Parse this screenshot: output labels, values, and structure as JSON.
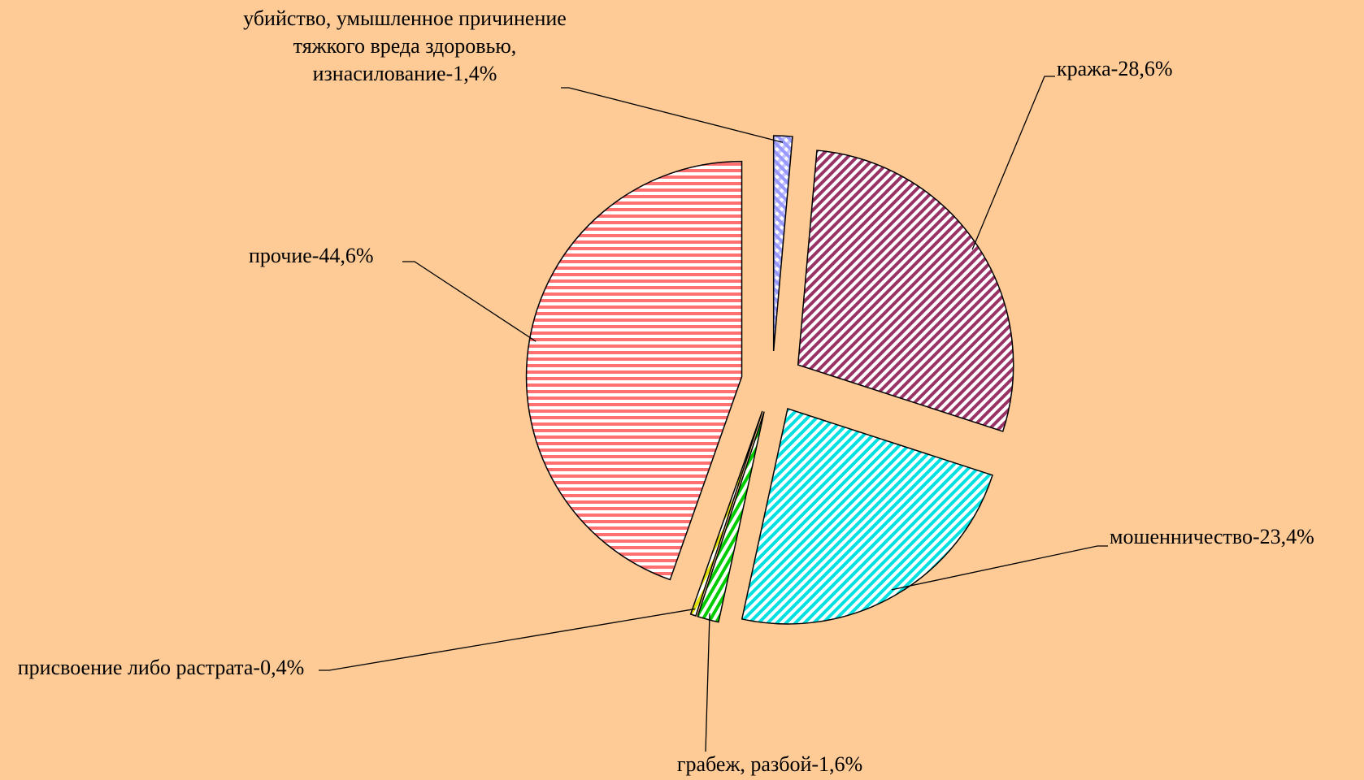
{
  "chart_data": {
    "type": "pie",
    "values": [
      1.4,
      28.6,
      23.4,
      1.6,
      0.4,
      44.6
    ],
    "value_labels": [
      "убийство, умышленное причинение тяжкого вреда здоровью, изнасилование-1,4%",
      "кража-28,6%",
      "мошенничество-23,4%",
      "грабеж, разбой-1,6%",
      "присвоение либо растрата-0,4%",
      "прочие-44,6%"
    ],
    "colors": [
      "#9999ff",
      "#993366",
      "#00e0e0",
      "#00cc00",
      "#e0e000",
      "#ff7070"
    ],
    "background": "#fecb97"
  }
}
